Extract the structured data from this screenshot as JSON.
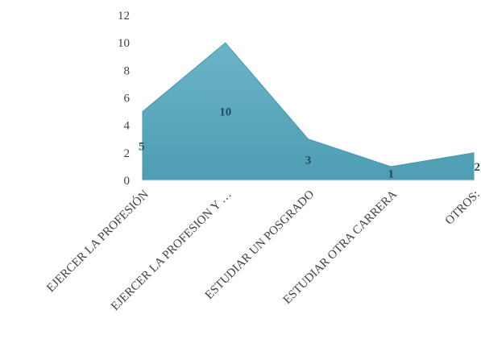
{
  "chart_data": {
    "type": "area",
    "categories": [
      "EJERCER LA PROFESIÓN",
      "EJERCER LA PROFESION Y …",
      "ESTUDIAR UN POSGRADO",
      "ESTUDIAR OTRA CARRERA",
      "OTROS:"
    ],
    "values": [
      5,
      10,
      3,
      1,
      2
    ],
    "data_labels": [
      "5",
      "10",
      "3",
      "1",
      "2"
    ],
    "title": "",
    "xlabel": "",
    "ylabel": "",
    "ylim": [
      0,
      12
    ],
    "y_ticks": [
      "0",
      "2",
      "4",
      "6",
      "8",
      "10",
      "12"
    ],
    "grid": false,
    "legend": "none",
    "colors": {
      "fill": "#5ba9bf",
      "fill_dark": "#4a96ac",
      "label": "#1f4e5f",
      "tick": "#404040"
    }
  }
}
